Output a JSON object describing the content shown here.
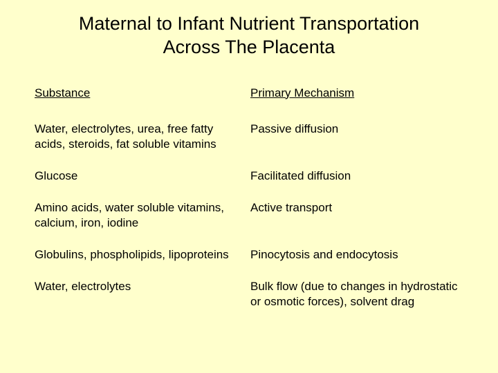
{
  "title": "Maternal to Infant Nutrient Transportation Across The Placenta",
  "headers": {
    "substance": "Substance",
    "mechanism": "Primary Mechanism"
  },
  "rows": [
    {
      "substance": "Water, electrolytes, urea, free fatty acids, steroids, fat soluble vitamins",
      "mechanism": "Passive diffusion"
    },
    {
      "substance": "Glucose",
      "mechanism": "Facilitated diffusion"
    },
    {
      "substance": "Amino acids, water soluble vitamins, calcium, iron, iodine",
      "mechanism": "Active transport"
    },
    {
      "substance": "Globulins, phospholipids, lipoproteins",
      "mechanism": "Pinocytosis and endocytosis"
    },
    {
      "substance": "Water, electrolytes",
      "mechanism": "Bulk flow (due to changes in hydrostatic or osmotic forces), solvent drag"
    }
  ],
  "colors": {
    "background": "#ffffcc",
    "text": "#000000"
  },
  "typography": {
    "title_fontsize": 27,
    "body_fontsize": 17,
    "font_family": "Arial"
  }
}
